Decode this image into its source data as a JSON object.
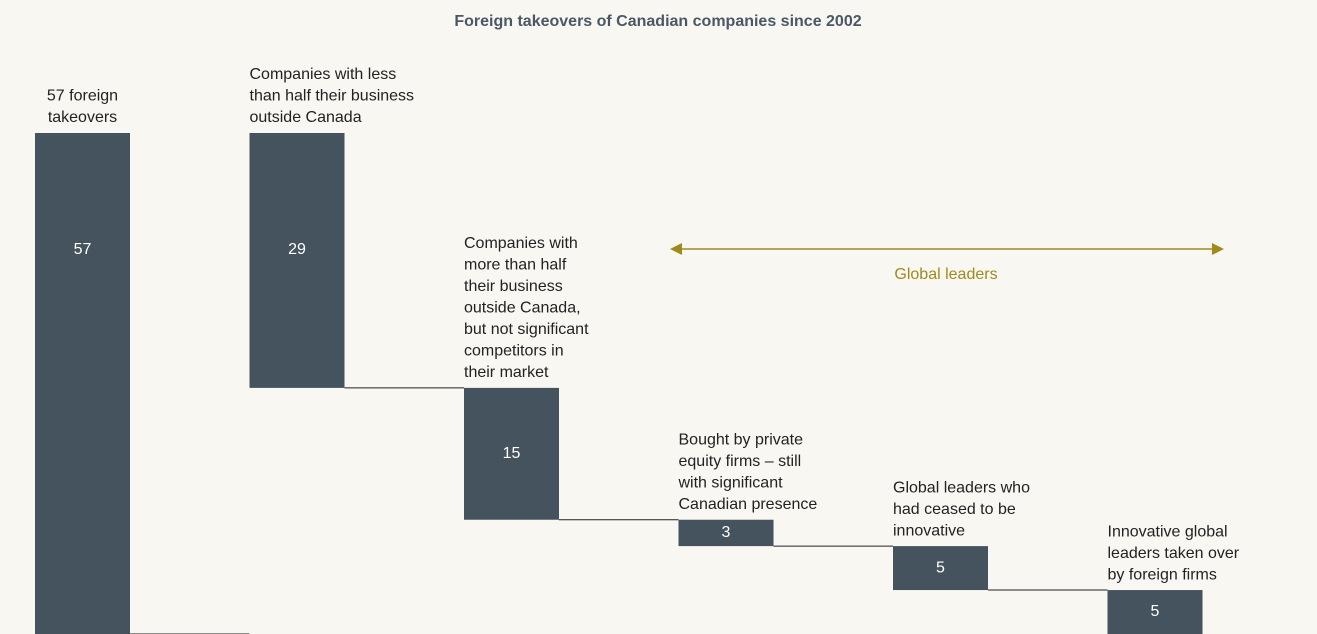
{
  "chart_data": {
    "type": "waterfall",
    "title": "Foreign takeovers of Canadian companies since 2002",
    "categories": [
      [
        "57 foreign",
        "takeovers"
      ],
      [
        "Companies with less",
        "than half their business",
        "outside Canada"
      ],
      [
        "Companies with",
        "more than half",
        "their business",
        "outside Canada,",
        "but not significant",
        "competitors in",
        "their market"
      ],
      [
        "Bought by private",
        "equity firms – still",
        "with significant",
        "Canadian presence"
      ],
      [
        "Global leaders who",
        "had ceased to be",
        "innovative"
      ],
      [
        "Innovative global",
        "leaders taken over",
        "by foreign firms"
      ]
    ],
    "values": [
      57,
      29,
      15,
      3,
      5,
      5
    ],
    "color": "#44535e",
    "ylim": [
      0,
      57
    ],
    "annotation": "Global leaders"
  }
}
